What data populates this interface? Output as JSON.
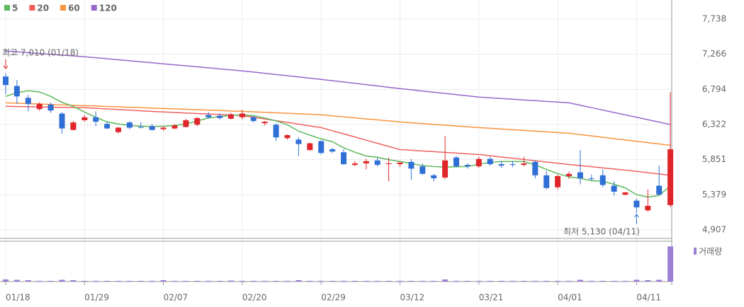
{
  "chart_data": {
    "type": "candlestick",
    "up_color": "#e0262b",
    "down_color": "#2f6fd6",
    "categories": [
      "01/18",
      null,
      null,
      null,
      null,
      null,
      null,
      "01/29",
      null,
      null,
      null,
      null,
      null,
      null,
      "02/07",
      null,
      null,
      null,
      null,
      null,
      null,
      "02/20",
      null,
      null,
      null,
      null,
      null,
      null,
      "02/29",
      null,
      null,
      null,
      null,
      null,
      null,
      "03/12",
      null,
      null,
      null,
      null,
      null,
      null,
      "03/21",
      null,
      null,
      null,
      null,
      null,
      null,
      "04/01",
      null,
      null,
      null,
      null,
      null,
      null,
      "04/11",
      null,
      null,
      null
    ],
    "open": [
      6967,
      6840,
      6680,
      6530,
      6590,
      6470,
      6250,
      6380,
      6420,
      6330,
      6220,
      6350,
      6290,
      6300,
      6260,
      6270,
      6290,
      6320,
      6450,
      6440,
      6400,
      6420,
      6420,
      6340,
      6320,
      6140,
      6120,
      5980,
      6100,
      5990,
      5950,
      5780,
      5800,
      5840,
      5790,
      5790,
      5820,
      5760,
      5640,
      5610,
      5880,
      5780,
      5760,
      5860,
      5790,
      5790,
      5780,
      5820,
      5640,
      5480,
      5630,
      5680,
      5600,
      5640,
      5500,
      5380,
      5300,
      5170,
      5500,
      5240
    ],
    "high": [
      7010,
      6920,
      6720,
      6620,
      6620,
      6490,
      6370,
      6450,
      6500,
      6360,
      6290,
      6370,
      6350,
      6330,
      6300,
      6330,
      6400,
      6420,
      6490,
      6470,
      6480,
      6520,
      6440,
      6370,
      6340,
      6190,
      6150,
      6080,
      6110,
      6010,
      5990,
      5830,
      5860,
      5880,
      5880,
      5830,
      5860,
      5800,
      5660,
      6170,
      5900,
      5800,
      5890,
      5890,
      5830,
      5830,
      5890,
      5840,
      5700,
      5650,
      5690,
      5980,
      5650,
      5720,
      5560,
      5420,
      5330,
      5450,
      5770,
      6760
    ],
    "low": [
      6729,
      6600,
      6500,
      6510,
      6480,
      6200,
      6240,
      6360,
      6300,
      6260,
      6200,
      6260,
      6270,
      6240,
      6240,
      6260,
      6280,
      6300,
      6400,
      6390,
      6390,
      6390,
      6350,
      6310,
      6100,
      6120,
      5900,
      5970,
      5920,
      5940,
      5780,
      5760,
      5720,
      5760,
      5560,
      5750,
      5580,
      5650,
      5560,
      5590,
      5750,
      5730,
      5740,
      5770,
      5740,
      5750,
      5760,
      5600,
      5450,
      5450,
      5590,
      5520,
      5570,
      5480,
      5370,
      5370,
      5130,
      5150,
      5380,
      5215
    ],
    "close": [
      6853,
      6700,
      6600,
      6600,
      6510,
      6270,
      6350,
      6420,
      6360,
      6270,
      6280,
      6280,
      6280,
      6250,
      6280,
      6310,
      6380,
      6410,
      6420,
      6410,
      6460,
      6470,
      6370,
      6360,
      6150,
      6180,
      6060,
      6070,
      5940,
      5960,
      5790,
      5800,
      5830,
      5780,
      5800,
      5810,
      5730,
      5660,
      5600,
      5840,
      5760,
      5760,
      5860,
      5790,
      5770,
      5780,
      5800,
      5640,
      5470,
      5630,
      5660,
      5600,
      5590,
      5510,
      5420,
      5410,
      5210,
      5230,
      5380,
      5990
    ],
    "series": [
      {
        "name": "5",
        "color": "#5cb85c",
        "values": [
          6700,
          6750,
          6776,
          6760,
          6700,
          6620,
          6567,
          6490,
          6420,
          6357,
          6330,
          6310,
          6300,
          6295,
          6300,
          6310,
          6330,
          6370,
          6410,
          6430,
          6445,
          6453,
          6440,
          6410,
          6370,
          6320,
          6234,
          6180,
          6130,
          6091,
          6010,
          5950,
          5900,
          5882,
          5850,
          5825,
          5800,
          5770,
          5758,
          5750,
          5755,
          5758,
          5790,
          5815,
          5825,
          5825,
          5825,
          5780,
          5720,
          5663,
          5620,
          5600,
          5567,
          5560,
          5520,
          5470,
          5380,
          5348,
          5370,
          5500
        ]
      },
      {
        "name": "20",
        "color": "#f06060",
        "values": [
          6567,
          6564,
          6562,
          6559,
          6556,
          6553,
          6551,
          6548,
          6540,
          6532,
          6524,
          6516,
          6507,
          6499,
          6491,
          6484,
          6477,
          6470,
          6464,
          6457,
          6450,
          6443,
          6420,
          6397,
          6374,
          6351,
          6327,
          6304,
          6281,
          6239,
          6197,
          6155,
          6112,
          6070,
          6028,
          5986,
          5977,
          5967,
          5958,
          5948,
          5939,
          5929,
          5920,
          5903,
          5886,
          5870,
          5853,
          5836,
          5819,
          5803,
          5786,
          5771,
          5756,
          5740,
          5725,
          5710,
          5693,
          5675,
          5658,
          5640
        ]
      },
      {
        "name": "60",
        "color": "#f7943c",
        "values": [
          6614,
          6609,
          6603,
          6598,
          6592,
          6587,
          6581,
          6576,
          6571,
          6565,
          6560,
          6554,
          6549,
          6543,
          6538,
          6533,
          6527,
          6522,
          6516,
          6511,
          6505,
          6500,
          6493,
          6487,
          6480,
          6473,
          6466,
          6460,
          6453,
          6439,
          6426,
          6412,
          6398,
          6385,
          6371,
          6357,
          6346,
          6335,
          6324,
          6314,
          6303,
          6292,
          6281,
          6272,
          6262,
          6253,
          6243,
          6234,
          6224,
          6215,
          6205,
          6187,
          6169,
          6151,
          6133,
          6115,
          6097,
          6079,
          6061,
          6043
        ]
      },
      {
        "name": "120",
        "color": "#9966cc",
        "values": [
          7310,
          7299,
          7288,
          7277,
          7266,
          7255,
          7244,
          7233,
          7219,
          7206,
          7192,
          7179,
          7165,
          7152,
          7138,
          7124,
          7111,
          7097,
          7084,
          7070,
          7057,
          7043,
          7027,
          7010,
          6994,
          6978,
          6962,
          6945,
          6929,
          6911,
          6894,
          6876,
          6858,
          6841,
          6823,
          6805,
          6789,
          6772,
          6756,
          6740,
          6724,
          6707,
          6691,
          6681,
          6672,
          6662,
          6652,
          6643,
          6633,
          6624,
          6614,
          6582,
          6549,
          6517,
          6484,
          6452,
          6420,
          6387,
          6355,
          6322
        ]
      }
    ],
    "ylim": [
      4793,
      7995
    ],
    "yticks": [
      {
        "value": 7738,
        "label": "7,738"
      },
      {
        "value": 7266,
        "label": "7,266"
      },
      {
        "value": 6794,
        "label": "6,794"
      },
      {
        "value": 6322,
        "label": "6,322"
      },
      {
        "value": 5851,
        "label": "5,851"
      },
      {
        "value": 5379,
        "label": "5,379"
      },
      {
        "value": 4907,
        "label": "4,907"
      }
    ],
    "grid": true,
    "volume": {
      "name": "거래량",
      "color": "#9b7fd4",
      "ylim": [
        0,
        115
      ],
      "values": [
        6,
        5,
        4,
        2,
        2,
        5,
        4,
        2,
        2,
        2,
        2,
        2,
        2,
        2,
        4,
        2,
        2,
        2,
        2,
        2,
        3,
        2,
        2,
        2,
        2,
        2,
        4,
        2,
        2,
        2,
        2,
        2,
        2,
        2,
        2,
        2,
        2,
        2,
        2,
        6,
        2,
        2,
        2,
        2,
        2,
        2,
        2,
        2,
        2,
        2,
        2,
        5,
        2,
        2,
        2,
        2,
        5,
        4,
        5,
        100
      ]
    },
    "annotations": [
      {
        "text": "최고 7,010 (01/18)",
        "color": "#e0262b"
      },
      {
        "text": "최저 5,130 (04/11)",
        "color": "#2f6fd6"
      }
    ]
  }
}
